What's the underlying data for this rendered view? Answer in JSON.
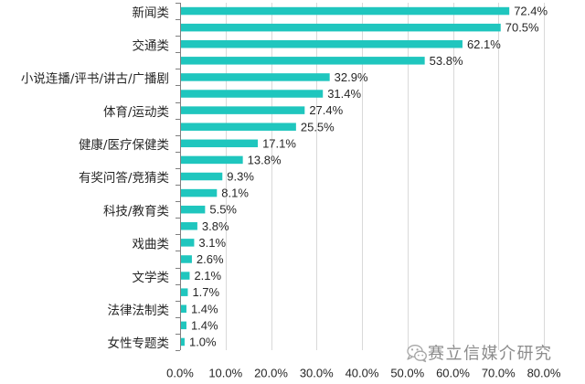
{
  "chart_data": {
    "type": "bar",
    "orientation": "horizontal",
    "categories": [
      "新闻类",
      "",
      "交通类",
      "",
      "小说连播/评书/讲古/广播剧",
      "",
      "体育/运动类",
      "",
      "健康/医疗保健类",
      "",
      "有奖问答/竞猜类",
      "",
      "科技/教育类",
      "",
      "戏曲类",
      "",
      "文学类",
      "",
      "法律法制类",
      "",
      "女性专题类"
    ],
    "values": [
      72.4,
      70.5,
      62.1,
      53.8,
      32.9,
      31.4,
      27.4,
      25.5,
      17.1,
      13.8,
      9.3,
      8.1,
      5.5,
      3.8,
      3.1,
      2.6,
      2.1,
      1.7,
      1.4,
      1.4,
      1.0
    ],
    "value_labels": [
      "72.4%",
      "70.5%",
      "62.1%",
      "53.8%",
      "32.9%",
      "31.4%",
      "27.4%",
      "25.5%",
      "17.1%",
      "13.8%",
      "9.3%",
      "8.1%",
      "5.5%",
      "3.8%",
      "3.1%",
      "2.6%",
      "2.1%",
      "1.7%",
      "1.4%",
      "1.4%",
      "1.0%"
    ],
    "xlim": [
      0,
      80
    ],
    "x_tick_values": [
      0,
      10,
      20,
      30,
      40,
      50,
      60,
      70,
      80
    ],
    "x_ticks": [
      "0.0%",
      "10.0%",
      "20.0%",
      "30.0%",
      "40.0%",
      "50.0%",
      "60.0%",
      "70.0%",
      "80.0%"
    ],
    "grid": true,
    "legend": "none",
    "colors": {
      "bar": "#1FC6BE",
      "grid": "#D9D9D9",
      "axis": "#7F7F7F",
      "text": "#262626"
    }
  },
  "watermark": {
    "text": "赛立信媒介研究",
    "icon": "wechat-icon",
    "color": "#8C8C8C"
  }
}
